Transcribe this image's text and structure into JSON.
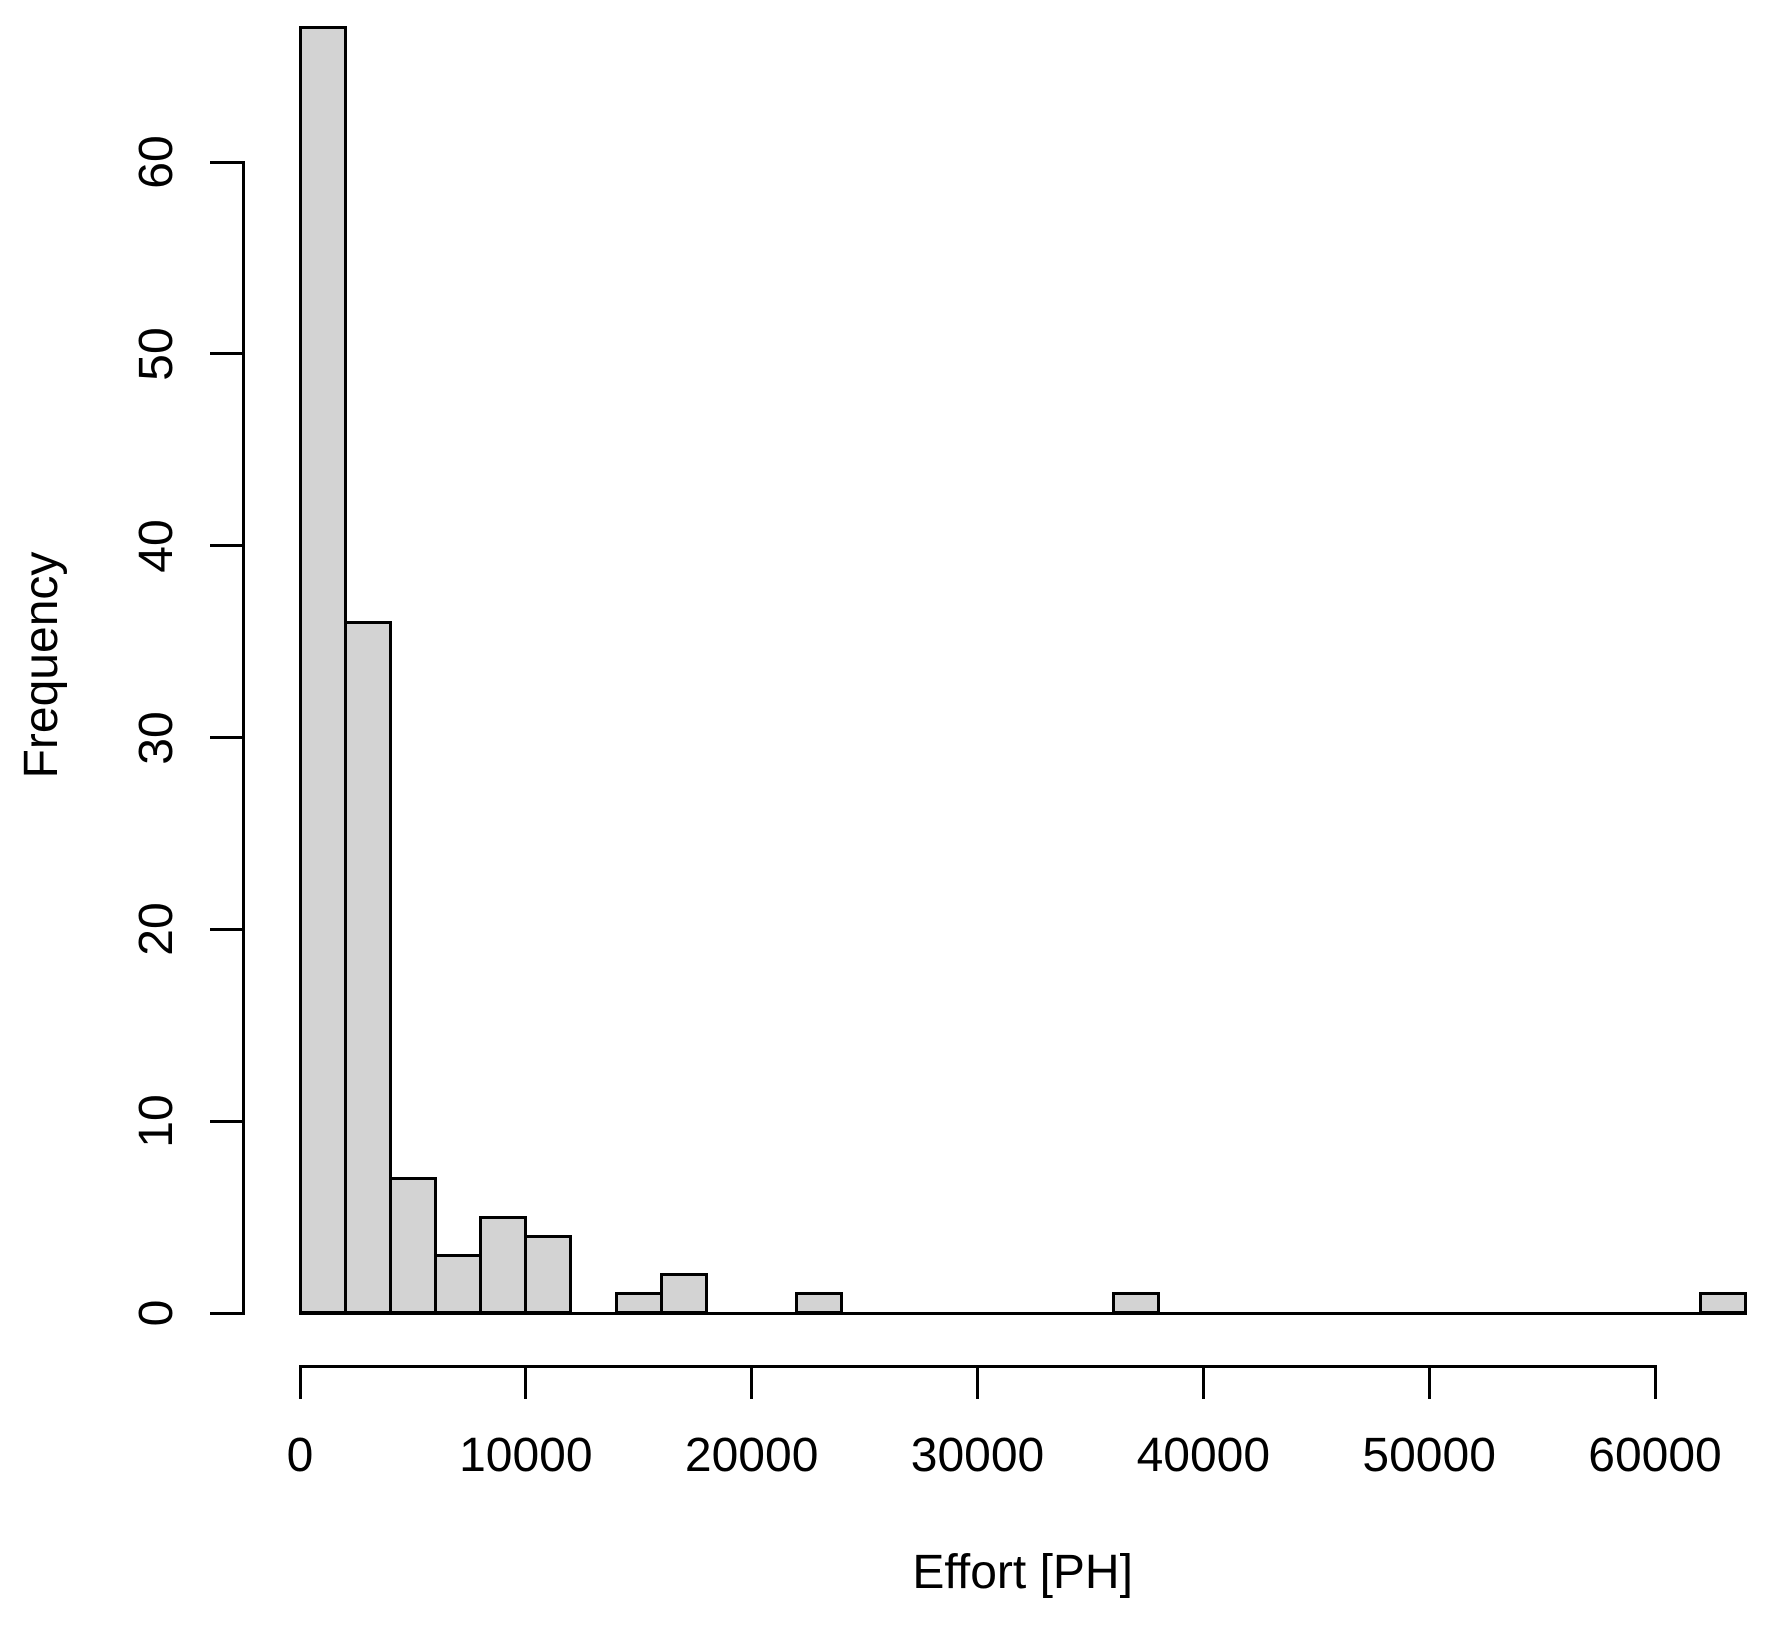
{
  "figure": {
    "background": "#ffffff"
  },
  "chart_data": {
    "type": "bar",
    "subtype": "histogram",
    "title": "",
    "xlabel": "Effort [PH]",
    "ylabel": "Frequency",
    "bin_start": 0,
    "bin_width": 2000,
    "counts": [
      67,
      36,
      7,
      3,
      5,
      4,
      0,
      1,
      2,
      0,
      0,
      1,
      0,
      0,
      0,
      0,
      0,
      0,
      1,
      0,
      0,
      0,
      0,
      0,
      0,
      0,
      0,
      0,
      0,
      0,
      0,
      1
    ],
    "x_ticks": [
      0,
      10000,
      20000,
      30000,
      40000,
      50000,
      60000
    ],
    "y_ticks": [
      0,
      10,
      20,
      30,
      40,
      50,
      60
    ],
    "xlim": [
      0,
      64000
    ],
    "ylim": [
      0,
      67
    ],
    "grid": false,
    "legend": "none",
    "bar_fill": "#d3d3d3",
    "bar_stroke": "#000000",
    "axis_color": "#000000",
    "text_color": "#000000"
  }
}
